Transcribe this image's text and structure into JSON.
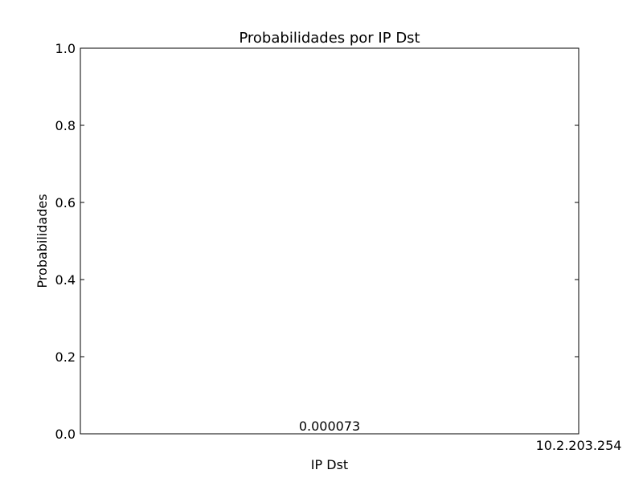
{
  "chart_data": {
    "type": "bar",
    "title": "Probabilidades por IP Dst",
    "xlabel": "IP Dst",
    "ylabel": "Probabilidades",
    "categories": [
      "10.2.203.254"
    ],
    "values": [
      7.3e-05
    ],
    "data_labels": [
      "0.000073"
    ],
    "ylim": [
      0,
      1.0
    ],
    "yticks": [
      "0.0",
      "0.2",
      "0.4",
      "0.6",
      "0.8",
      "1.0"
    ],
    "grid": false,
    "bar_color": "#0000ff"
  }
}
